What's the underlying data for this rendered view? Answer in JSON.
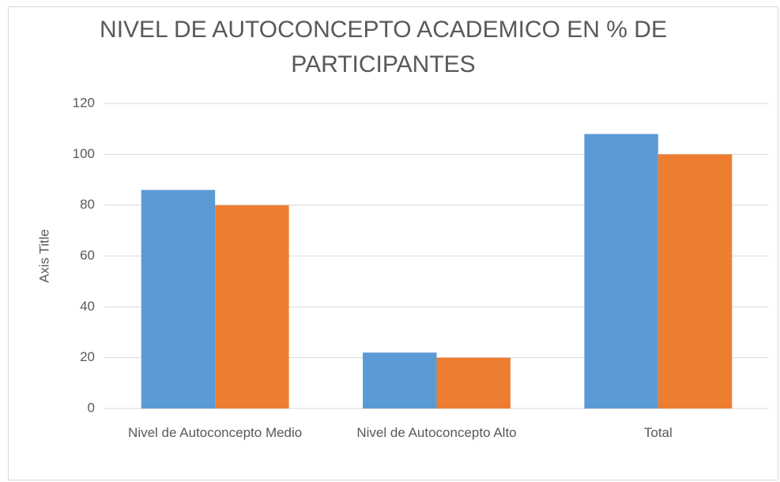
{
  "chart_data": {
    "type": "bar",
    "title": "NIVEL DE AUTOCONCEPTO ACADEMICO EN % DE PARTICIPANTES",
    "y_axis_label": "Axis Title",
    "categories": [
      "Nivel de Autoconcepto Medio",
      "Nivel de Autoconcepto Alto",
      "Total"
    ],
    "series": [
      {
        "color": "#5b9bd5",
        "values": [
          86,
          22,
          108
        ]
      },
      {
        "color": "#ed7d31",
        "values": [
          80,
          20,
          100
        ]
      }
    ],
    "ylim": [
      0,
      120
    ],
    "yticks": [
      0,
      20,
      40,
      60,
      80,
      100,
      120
    ],
    "grid": true
  }
}
